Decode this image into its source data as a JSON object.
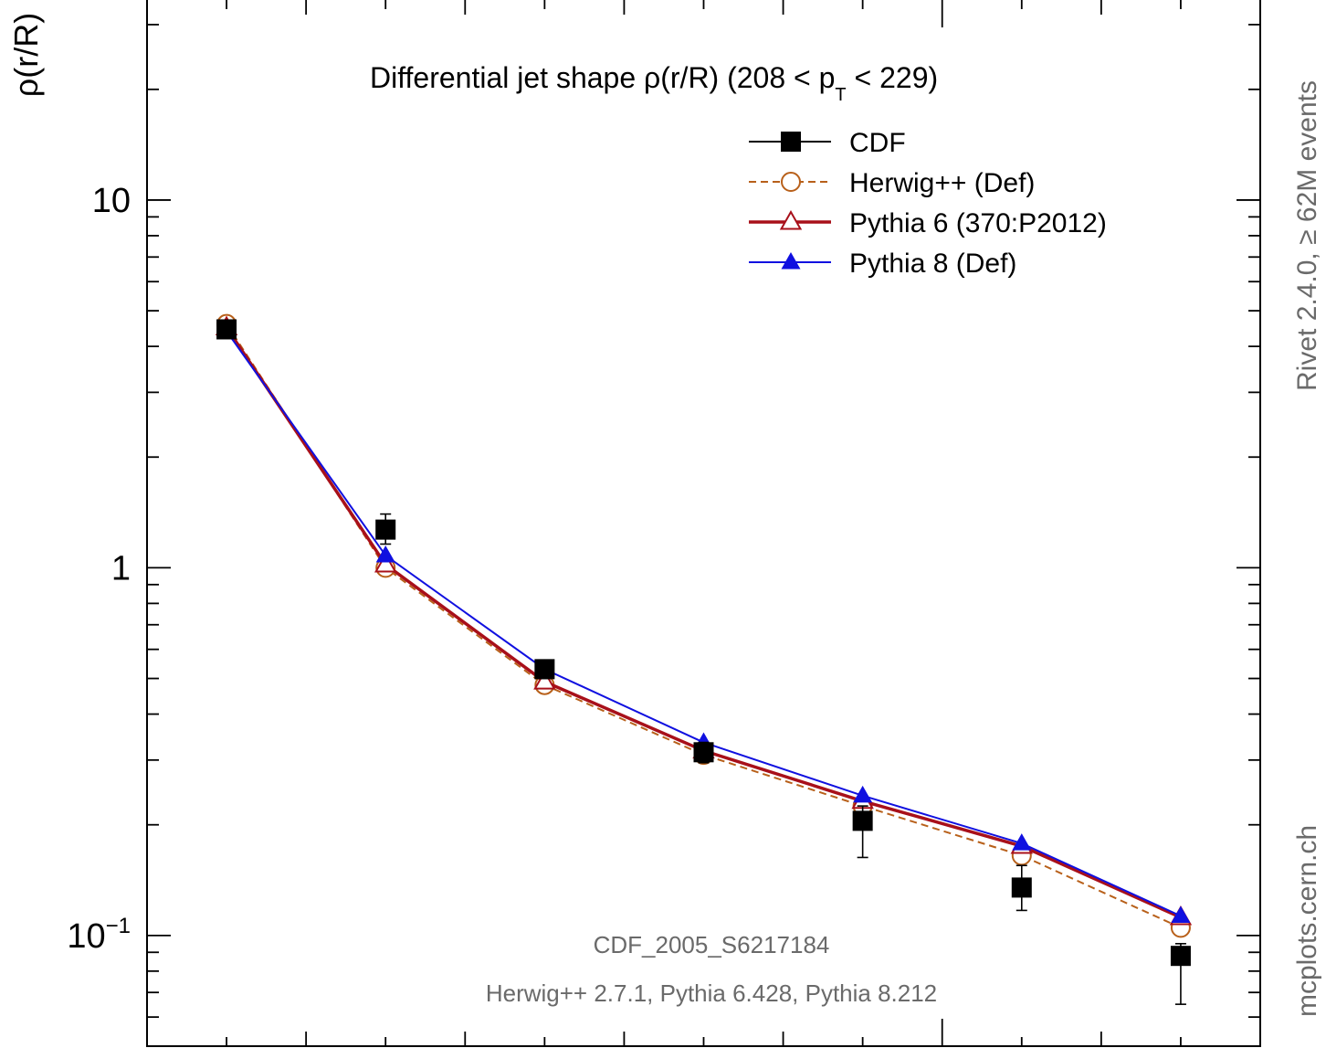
{
  "chart_data": {
    "type": "line",
    "title": "Differential jet shape ρ(r/R) (208 < p",
    "title_sub": "T",
    "title_tail": " < 229)",
    "ylabel": "ρ(r/R)",
    "xlabel": "",
    "yscale": "log",
    "ylim": [
      0.05,
      35
    ],
    "xlim": [
      0.0,
      0.7
    ],
    "grid": false,
    "legend_position": "top-right",
    "y_tick_labels": [
      {
        "value": 10,
        "text": "10"
      },
      {
        "value": 1,
        "text": "1"
      },
      {
        "value": 0.1,
        "mant": "10",
        "exp": "−1"
      }
    ],
    "x": [
      0.05,
      0.15,
      0.25,
      0.35,
      0.45,
      0.55,
      0.65
    ],
    "series": [
      {
        "name": "CDF",
        "color": "#000000",
        "marker": "square",
        "values": [
          4.45,
          1.27,
          0.53,
          0.315,
          0.205,
          0.135,
          0.088
        ],
        "err_low": [
          4.35,
          1.16,
          0.5,
          0.295,
          0.163,
          0.117,
          0.065
        ],
        "err_high": [
          4.55,
          1.4,
          0.56,
          0.335,
          0.225,
          0.155,
          0.095
        ]
      },
      {
        "name": "Herwig++ (Def)",
        "color": "#b8601a",
        "marker": "circle-open",
        "dashed": true,
        "values": [
          4.6,
          1.0,
          0.48,
          0.31,
          0.225,
          0.165,
          0.105
        ]
      },
      {
        "name": "Pythia 6 (370:P2012)",
        "color": "#a8101a",
        "marker": "triangle-open",
        "values": [
          4.5,
          1.02,
          0.49,
          0.318,
          0.232,
          0.175,
          0.112
        ]
      },
      {
        "name": "Pythia 8 (Def)",
        "color": "#1010e0",
        "marker": "triangle-filled",
        "values": [
          4.4,
          1.08,
          0.53,
          0.335,
          0.24,
          0.178,
          0.113
        ]
      }
    ],
    "annotations": [
      "CDF_2005_S6217184",
      "Herwig++ 2.7.1, Pythia 6.428, Pythia 8.212"
    ],
    "side_label_top": "Rivet 2.4.0,  ≥ 62M events",
    "side_label_bottom": "mcplots.cern.ch"
  }
}
